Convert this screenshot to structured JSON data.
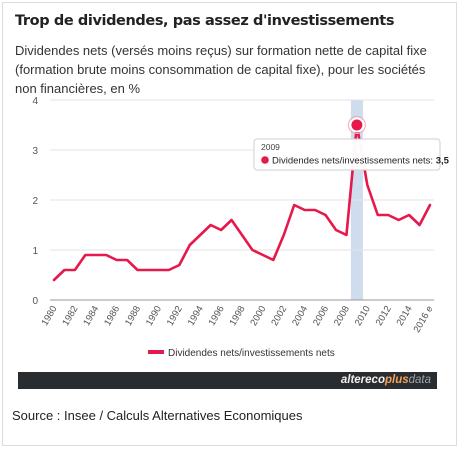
{
  "header": {
    "title": "Trop de dividendes, pas assez d'investissements",
    "subtitle": "Dividendes nets (versés moins reçus) sur formation nette de capital fixe (formation brute moins consommation de capital fixe), pour les sociétés non financières, en %"
  },
  "chart_data": {
    "type": "line",
    "x": [
      1980,
      1981,
      1982,
      1983,
      1984,
      1985,
      1986,
      1987,
      1988,
      1989,
      1990,
      1991,
      1992,
      1993,
      1994,
      1995,
      1996,
      1997,
      1998,
      1999,
      2000,
      2001,
      2002,
      2003,
      2004,
      2005,
      2006,
      2007,
      2008,
      2009,
      2010,
      2011,
      2012,
      2013,
      2014,
      2015,
      2016
    ],
    "series": [
      {
        "name": "Dividendes nets/investissements nets",
        "color": "#e5194b",
        "values": [
          0.4,
          0.6,
          0.6,
          0.9,
          0.9,
          0.9,
          0.8,
          0.8,
          0.6,
          0.6,
          0.6,
          0.6,
          0.7,
          1.1,
          1.3,
          1.5,
          1.4,
          1.6,
          1.3,
          1.0,
          0.9,
          0.8,
          1.3,
          1.9,
          1.8,
          1.8,
          1.7,
          1.4,
          1.3,
          3.5,
          2.3,
          1.7,
          1.7,
          1.6,
          1.7,
          1.5,
          1.9
        ]
      }
    ],
    "x_tick_labels": [
      "1980",
      "1982",
      "1984",
      "1986",
      "1988",
      "1990",
      "1992",
      "1994",
      "1996",
      "1998",
      "2000",
      "2002",
      "2004",
      "2006",
      "2008",
      "2010",
      "2012",
      "2014",
      "2016 e"
    ],
    "y_ticks": [
      0,
      1,
      2,
      3,
      4
    ],
    "ylim": [
      0,
      4
    ],
    "xlabel": "",
    "ylabel": "",
    "grid": "horizontal",
    "highlight": {
      "x": 2009,
      "band_color": "#cfdced"
    },
    "tooltip": {
      "year": "2009",
      "label": "Dividendes nets/investissements nets:",
      "value": "3,5"
    },
    "legend": {
      "position": "bottom",
      "label": "Dividendes nets/investissements nets"
    }
  },
  "brand": {
    "part1": "altereco",
    "part2": "plus",
    "part3": "data"
  },
  "footer": {
    "source": "Source : Insee / Calculs Alternatives Economiques"
  }
}
